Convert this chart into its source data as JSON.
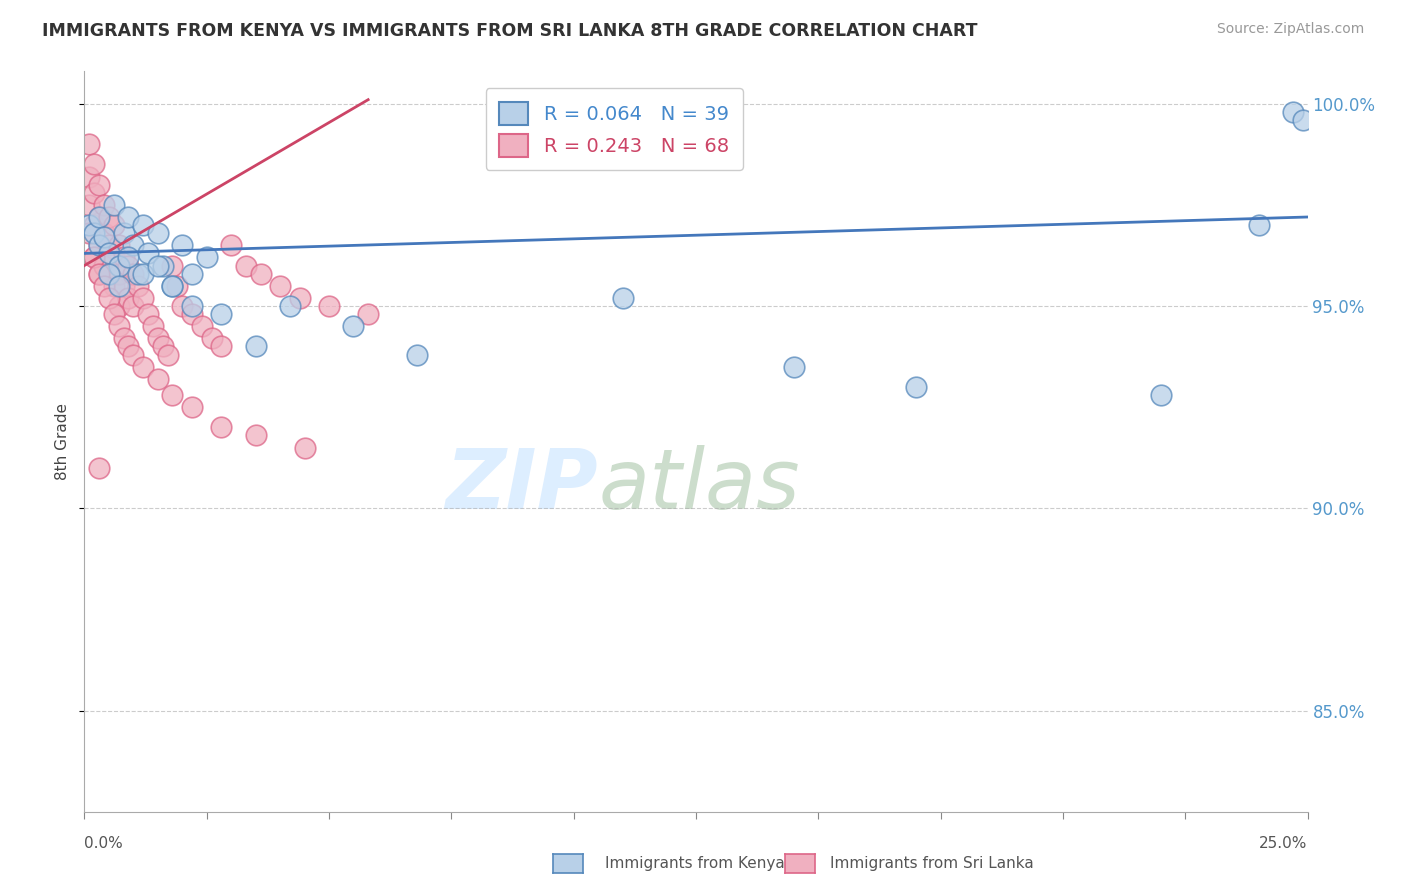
{
  "title": "IMMIGRANTS FROM KENYA VS IMMIGRANTS FROM SRI LANKA 8TH GRADE CORRELATION CHART",
  "source": "Source: ZipAtlas.com",
  "ylabel": "8th Grade",
  "legend_kenya": "R = 0.064   N = 39",
  "legend_srilanka": "R = 0.243   N = 68",
  "legend_kenya_label": "Immigrants from Kenya",
  "legend_srilanka_label": "Immigrants from Sri Lanka",
  "xlim": [
    0.0,
    0.25
  ],
  "ylim": [
    0.825,
    1.008
  ],
  "yticks": [
    0.85,
    0.9,
    0.95,
    1.0
  ],
  "ytick_labels": [
    "85.0%",
    "90.0%",
    "95.0%",
    "100.0%"
  ],
  "color_kenya_face": "#b8d0e8",
  "color_kenya_edge": "#5588bb",
  "color_kenya_line": "#4477bb",
  "color_srilanka_face": "#f0b0c0",
  "color_srilanka_edge": "#dd6688",
  "color_srilanka_line": "#cc4466",
  "kenya_x": [
    0.001,
    0.002,
    0.003,
    0.003,
    0.004,
    0.005,
    0.006,
    0.007,
    0.008,
    0.009,
    0.01,
    0.011,
    0.012,
    0.013,
    0.015,
    0.016,
    0.018,
    0.02,
    0.022,
    0.025,
    0.005,
    0.007,
    0.009,
    0.012,
    0.015,
    0.018,
    0.022,
    0.028,
    0.035,
    0.042,
    0.055,
    0.068,
    0.11,
    0.145,
    0.17,
    0.22,
    0.24,
    0.247,
    0.249
  ],
  "kenya_y": [
    0.97,
    0.968,
    0.965,
    0.972,
    0.967,
    0.963,
    0.975,
    0.96,
    0.968,
    0.972,
    0.965,
    0.958,
    0.97,
    0.963,
    0.968,
    0.96,
    0.955,
    0.965,
    0.958,
    0.962,
    0.958,
    0.955,
    0.962,
    0.958,
    0.96,
    0.955,
    0.95,
    0.948,
    0.94,
    0.95,
    0.945,
    0.938,
    0.952,
    0.935,
    0.93,
    0.928,
    0.97,
    0.998,
    0.996
  ],
  "srilanka_x": [
    0.001,
    0.001,
    0.001,
    0.002,
    0.002,
    0.002,
    0.002,
    0.003,
    0.003,
    0.003,
    0.003,
    0.004,
    0.004,
    0.004,
    0.005,
    0.005,
    0.005,
    0.006,
    0.006,
    0.006,
    0.007,
    0.007,
    0.007,
    0.008,
    0.008,
    0.009,
    0.009,
    0.01,
    0.01,
    0.011,
    0.012,
    0.013,
    0.014,
    0.015,
    0.016,
    0.017,
    0.018,
    0.019,
    0.02,
    0.022,
    0.024,
    0.026,
    0.028,
    0.03,
    0.033,
    0.036,
    0.04,
    0.044,
    0.05,
    0.058,
    0.001,
    0.002,
    0.003,
    0.004,
    0.005,
    0.006,
    0.007,
    0.008,
    0.009,
    0.01,
    0.012,
    0.015,
    0.018,
    0.022,
    0.028,
    0.035,
    0.045,
    0.003
  ],
  "srilanka_y": [
    0.99,
    0.982,
    0.975,
    0.985,
    0.978,
    0.97,
    0.962,
    0.98,
    0.972,
    0.965,
    0.958,
    0.975,
    0.968,
    0.96,
    0.972,
    0.965,
    0.958,
    0.97,
    0.962,
    0.955,
    0.965,
    0.958,
    0.95,
    0.962,
    0.955,
    0.96,
    0.952,
    0.958,
    0.95,
    0.955,
    0.952,
    0.948,
    0.945,
    0.942,
    0.94,
    0.938,
    0.96,
    0.955,
    0.95,
    0.948,
    0.945,
    0.942,
    0.94,
    0.965,
    0.96,
    0.958,
    0.955,
    0.952,
    0.95,
    0.948,
    0.968,
    0.962,
    0.958,
    0.955,
    0.952,
    0.948,
    0.945,
    0.942,
    0.94,
    0.938,
    0.935,
    0.932,
    0.928,
    0.925,
    0.92,
    0.918,
    0.915,
    0.91
  ],
  "kenya_trend_x": [
    0.0,
    0.25
  ],
  "kenya_trend_y": [
    0.963,
    0.972
  ],
  "srilanka_trend_x": [
    0.0,
    0.058
  ],
  "srilanka_trend_y": [
    0.96,
    1.001
  ],
  "watermark_zip_color": "#ddeeff",
  "watermark_atlas_color": "#ccddcc"
}
